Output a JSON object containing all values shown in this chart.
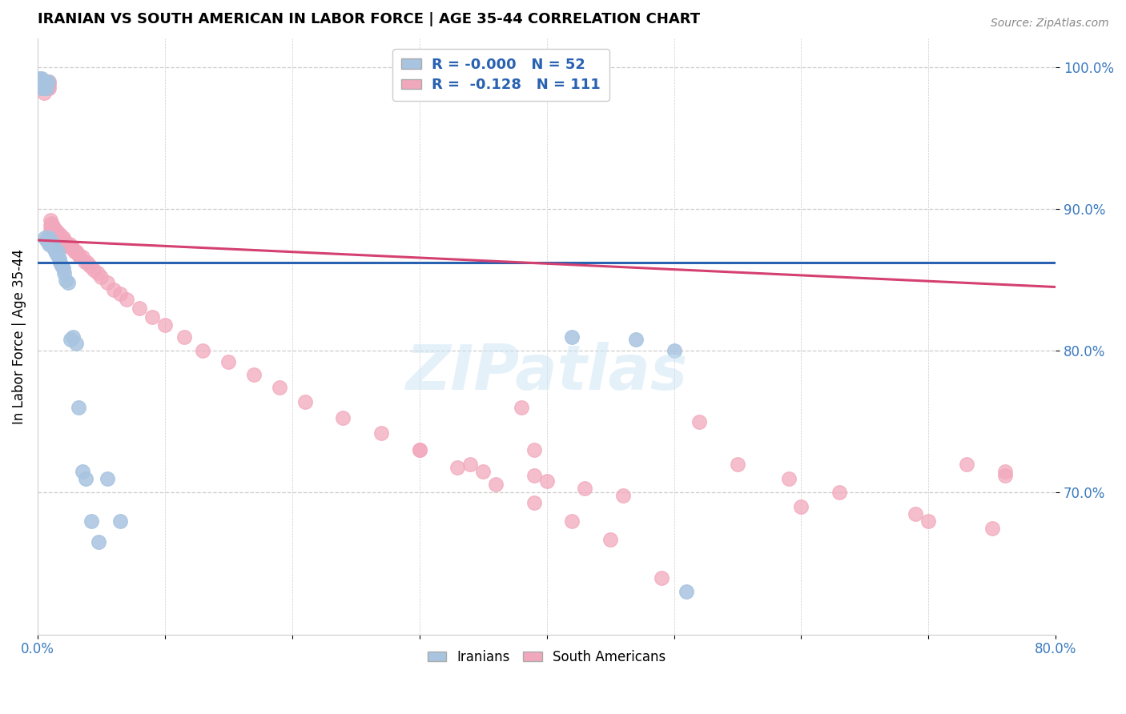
{
  "title": "IRANIAN VS SOUTH AMERICAN IN LABOR FORCE | AGE 35-44 CORRELATION CHART",
  "source": "Source: ZipAtlas.com",
  "ylabel": "In Labor Force | Age 35-44",
  "xlim": [
    0.0,
    0.8
  ],
  "ylim": [
    0.6,
    1.02
  ],
  "x_ticks": [
    0.0,
    0.1,
    0.2,
    0.3,
    0.4,
    0.5,
    0.6,
    0.7,
    0.8
  ],
  "y_ticks_right": [
    0.7,
    0.8,
    0.9,
    1.0
  ],
  "y_tick_labels_right": [
    "70.0%",
    "80.0%",
    "90.0%",
    "100.0%"
  ],
  "grid_color": "#cccccc",
  "background_color": "#ffffff",
  "watermark": "ZIPatlas",
  "legend_R1": "-0.000",
  "legend_N1": "52",
  "legend_R2": "-0.128",
  "legend_N2": "111",
  "iranian_color": "#a8c4e0",
  "south_american_color": "#f2a8bc",
  "iranian_line_color": "#2962b0",
  "south_american_line_color": "#d44070",
  "dashed_line_color": "#aaaaaa",
  "iran_line_y0": 0.862,
  "iran_line_y1": 0.862,
  "sa_line_y0": 0.878,
  "sa_line_y1": 0.845,
  "iranians_x": [
    0.001,
    0.002,
    0.002,
    0.003,
    0.003,
    0.003,
    0.004,
    0.004,
    0.004,
    0.005,
    0.005,
    0.005,
    0.006,
    0.006,
    0.006,
    0.007,
    0.007,
    0.007,
    0.008,
    0.008,
    0.009,
    0.009,
    0.01,
    0.01,
    0.011,
    0.011,
    0.012,
    0.013,
    0.014,
    0.015,
    0.016,
    0.017,
    0.018,
    0.019,
    0.02,
    0.021,
    0.022,
    0.024,
    0.026,
    0.028,
    0.03,
    0.032,
    0.035,
    0.038,
    0.042,
    0.048,
    0.055,
    0.065,
    0.42,
    0.47,
    0.5,
    0.51
  ],
  "iranians_y": [
    0.99,
    0.99,
    0.992,
    0.99,
    0.992,
    0.985,
    0.99,
    0.988,
    0.985,
    0.99,
    0.988,
    0.985,
    0.99,
    0.988,
    0.88,
    0.988,
    0.985,
    0.878,
    0.99,
    0.88,
    0.88,
    0.875,
    0.878,
    0.876,
    0.876,
    0.874,
    0.875,
    0.872,
    0.87,
    0.868,
    0.87,
    0.865,
    0.862,
    0.86,
    0.858,
    0.855,
    0.85,
    0.848,
    0.808,
    0.81,
    0.805,
    0.76,
    0.715,
    0.71,
    0.68,
    0.665,
    0.71,
    0.68,
    0.81,
    0.808,
    0.8,
    0.63
  ],
  "south_americans_x": [
    0.001,
    0.001,
    0.002,
    0.002,
    0.002,
    0.003,
    0.003,
    0.003,
    0.004,
    0.004,
    0.004,
    0.005,
    0.005,
    0.005,
    0.005,
    0.006,
    0.006,
    0.006,
    0.007,
    0.007,
    0.007,
    0.008,
    0.008,
    0.008,
    0.009,
    0.009,
    0.009,
    0.01,
    0.01,
    0.01,
    0.011,
    0.011,
    0.012,
    0.012,
    0.013,
    0.013,
    0.014,
    0.014,
    0.015,
    0.015,
    0.016,
    0.016,
    0.017,
    0.018,
    0.018,
    0.019,
    0.02,
    0.02,
    0.021,
    0.022,
    0.022,
    0.023,
    0.024,
    0.025,
    0.026,
    0.027,
    0.028,
    0.029,
    0.03,
    0.031,
    0.032,
    0.033,
    0.035,
    0.037,
    0.039,
    0.041,
    0.044,
    0.047,
    0.05,
    0.055,
    0.06,
    0.065,
    0.07,
    0.08,
    0.09,
    0.1,
    0.115,
    0.13,
    0.15,
    0.17,
    0.19,
    0.21,
    0.24,
    0.27,
    0.3,
    0.33,
    0.36,
    0.39,
    0.42,
    0.45,
    0.38,
    0.49,
    0.52,
    0.55,
    0.59,
    0.63,
    0.39,
    0.73,
    0.76,
    0.76,
    0.3,
    0.34,
    0.35,
    0.39,
    0.4,
    0.43,
    0.46,
    0.6,
    0.69,
    0.7,
    0.75
  ],
  "south_americans_y": [
    0.99,
    0.988,
    0.992,
    0.99,
    0.988,
    0.99,
    0.988,
    0.985,
    0.99,
    0.988,
    0.985,
    0.99,
    0.988,
    0.985,
    0.982,
    0.99,
    0.988,
    0.985,
    0.99,
    0.988,
    0.985,
    0.99,
    0.988,
    0.985,
    0.99,
    0.988,
    0.985,
    0.892,
    0.888,
    0.885,
    0.89,
    0.885,
    0.888,
    0.883,
    0.886,
    0.882,
    0.885,
    0.88,
    0.884,
    0.88,
    0.883,
    0.878,
    0.88,
    0.882,
    0.878,
    0.876,
    0.88,
    0.876,
    0.878,
    0.876,
    0.874,
    0.876,
    0.874,
    0.875,
    0.873,
    0.873,
    0.872,
    0.87,
    0.87,
    0.869,
    0.868,
    0.867,
    0.866,
    0.863,
    0.862,
    0.86,
    0.857,
    0.855,
    0.852,
    0.848,
    0.843,
    0.84,
    0.836,
    0.83,
    0.824,
    0.818,
    0.81,
    0.8,
    0.792,
    0.783,
    0.774,
    0.764,
    0.753,
    0.742,
    0.73,
    0.718,
    0.706,
    0.693,
    0.68,
    0.667,
    0.76,
    0.64,
    0.75,
    0.72,
    0.71,
    0.7,
    0.73,
    0.72,
    0.715,
    0.712,
    0.73,
    0.72,
    0.715,
    0.712,
    0.708,
    0.703,
    0.698,
    0.69,
    0.685,
    0.68,
    0.675
  ]
}
